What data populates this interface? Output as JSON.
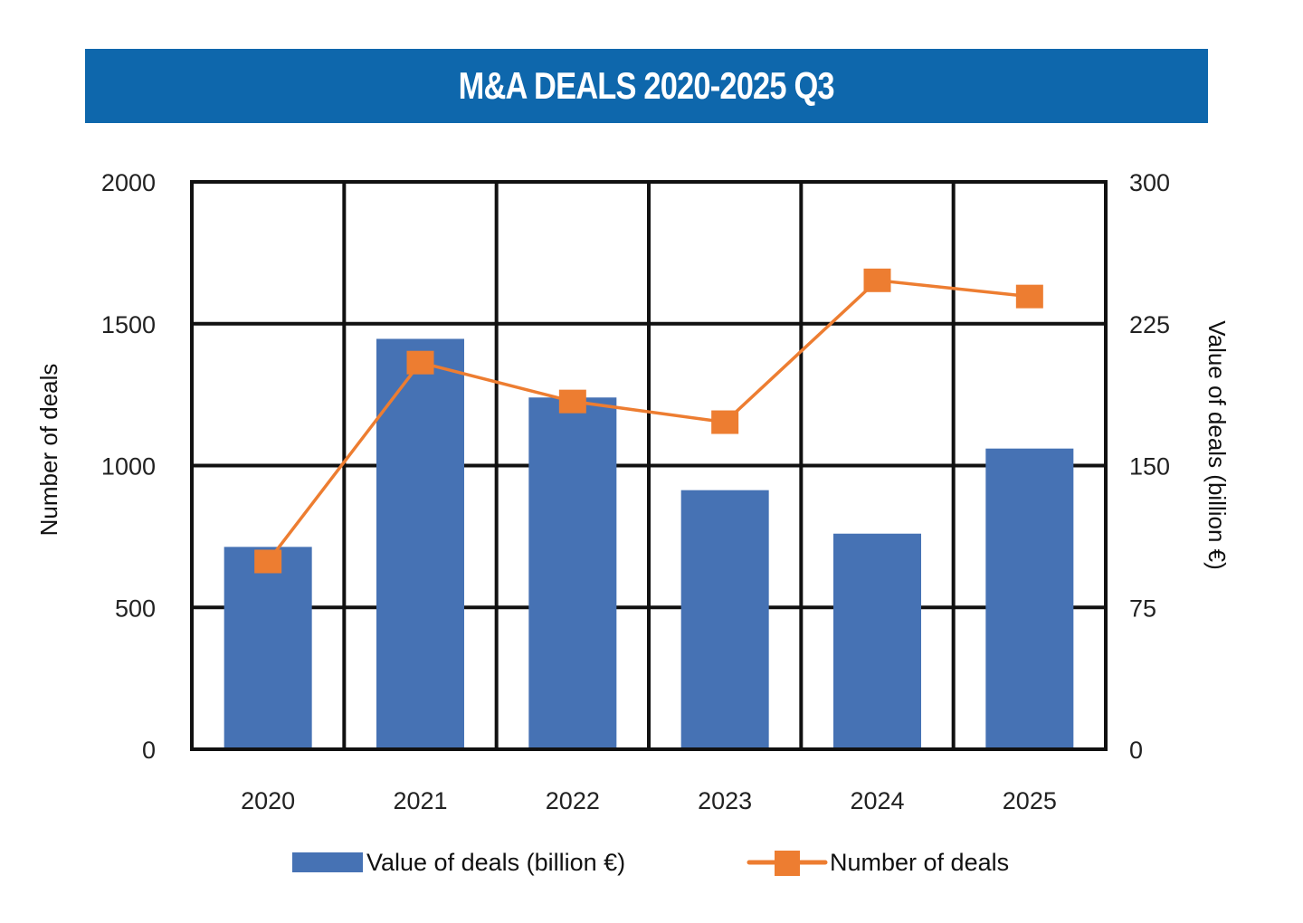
{
  "chart_data": {
    "type": "bar",
    "title": "M&A DEALS 2020-2025 Q3",
    "categories": [
      "2020",
      "2021",
      "2022",
      "2023",
      "2024",
      "2025"
    ],
    "series": [
      {
        "name": "Value of deals (billion €)",
        "type": "bar",
        "axis": "right",
        "color": "#4672b4",
        "values": [
          107,
          217,
          186,
          137,
          114,
          159
        ]
      },
      {
        "name": "Number of deals",
        "type": "line",
        "axis": "left",
        "color": "#ed7d31",
        "marker": "square",
        "values": [
          662,
          1363,
          1226,
          1153,
          1653,
          1596
        ]
      }
    ],
    "ylabel": "Number of deals",
    "ylim": [
      0,
      2000
    ],
    "yticks": [
      "0",
      "500",
      "1000",
      "1500",
      "2000"
    ],
    "y2label": "Value of deals (billion €)",
    "y2lim": [
      0,
      300
    ],
    "y2ticks": [
      "0",
      "75",
      "150",
      "225",
      "300"
    ],
    "grid": true,
    "legend": "bottom"
  }
}
